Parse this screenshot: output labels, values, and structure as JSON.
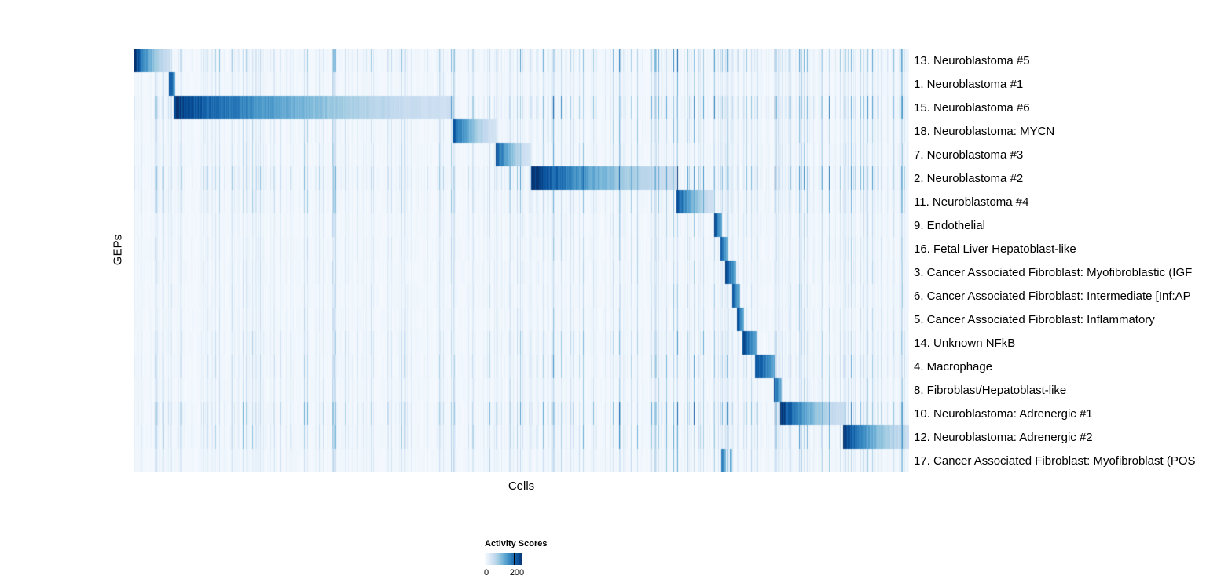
{
  "figure": {
    "background": "#ffffff",
    "text_color": "#000000"
  },
  "chart_data": {
    "type": "heatmap",
    "title": "",
    "xlabel": "Cells",
    "ylabel": "GEPs",
    "value_range": [
      0,
      200
    ],
    "colorbar": {
      "title": "Activity Scores",
      "min_label": "0",
      "max_label": "200",
      "colormap": "Blues",
      "low_color": "#f7fbff",
      "high_color": "#08306b"
    },
    "boundaries": [
      0.047,
      0.411,
      0.467,
      0.512,
      0.7,
      0.748,
      0.757,
      0.763,
      0.772,
      0.779,
      0.786,
      0.803,
      0.827,
      0.833,
      0.915
    ],
    "rows": [
      {
        "label": "13. Neuroblastoma #5",
        "noise": 1.2,
        "segments": [
          {
            "start": 0.0,
            "end": 0.047,
            "peak": 1.0
          }
        ]
      },
      {
        "label": "1. Neuroblastoma #1",
        "noise": 0.7,
        "segments": [
          {
            "start": 0.045,
            "end": 0.053,
            "peak": 1.0
          }
        ]
      },
      {
        "label": "15. Neuroblastoma #6",
        "noise": 1.3,
        "segments": [
          {
            "start": 0.051,
            "end": 0.411,
            "peak": 0.95
          }
        ]
      },
      {
        "label": "18. Neuroblastoma: MYCN",
        "noise": 0.8,
        "segments": [
          {
            "start": 0.411,
            "end": 0.467,
            "peak": 0.85
          }
        ]
      },
      {
        "label": "7. Neuroblastoma #3",
        "noise": 0.8,
        "segments": [
          {
            "start": 0.467,
            "end": 0.511,
            "peak": 0.85
          }
        ]
      },
      {
        "label": "2. Neuroblastoma #2",
        "noise": 1.4,
        "segments": [
          {
            "start": 0.512,
            "end": 0.7,
            "peak": 1.0
          }
        ]
      },
      {
        "label": "11. Neuroblastoma #4",
        "noise": 0.9,
        "segments": [
          {
            "start": 0.7,
            "end": 0.748,
            "peak": 0.9
          }
        ]
      },
      {
        "label": "9. Endothelial",
        "noise": 0.6,
        "segments": [
          {
            "start": 0.748,
            "end": 0.758,
            "peak": 0.9
          }
        ]
      },
      {
        "label": "16. Fetal Liver Hepatoblast-like",
        "noise": 0.6,
        "segments": [
          {
            "start": 0.756,
            "end": 0.766,
            "peak": 0.85
          }
        ]
      },
      {
        "label": "3. Cancer Associated Fibroblast: Myofibroblastic (IGF",
        "noise": 0.6,
        "segments": [
          {
            "start": 0.762,
            "end": 0.777,
            "peak": 0.9
          }
        ]
      },
      {
        "label": "6. Cancer Associated Fibroblast: Intermediate [Inf:AP",
        "noise": 0.6,
        "segments": [
          {
            "start": 0.772,
            "end": 0.782,
            "peak": 0.85
          }
        ]
      },
      {
        "label": "5. Cancer Associated Fibroblast: Inflammatory",
        "noise": 0.6,
        "segments": [
          {
            "start": 0.778,
            "end": 0.787,
            "peak": 0.85
          }
        ]
      },
      {
        "label": "14. Unknown NFkB",
        "noise": 0.8,
        "segments": [
          {
            "start": 0.785,
            "end": 0.803,
            "peak": 0.9
          }
        ]
      },
      {
        "label": "4. Macrophage",
        "noise": 0.9,
        "segments": [
          {
            "start": 0.801,
            "end": 0.827,
            "peak": 0.9
          }
        ]
      },
      {
        "label": "8. Fibroblast/Hepatoblast-like",
        "noise": 0.7,
        "segments": [
          {
            "start": 0.825,
            "end": 0.835,
            "peak": 0.85
          }
        ]
      },
      {
        "label": "10. Neuroblastoma: Adrenergic #1",
        "noise": 1.3,
        "segments": [
          {
            "start": 0.833,
            "end": 0.915,
            "peak": 1.0
          }
        ]
      },
      {
        "label": "12. Neuroblastoma: Adrenergic #2",
        "noise": 1.1,
        "segments": [
          {
            "start": 0.914,
            "end": 1.0,
            "peak": 1.0
          }
        ]
      },
      {
        "label": "17. Cancer Associated Fibroblast: Myofibroblast (POS",
        "noise": 0.7,
        "segments": [
          {
            "start": 0.757,
            "end": 0.763,
            "peak": 0.8
          },
          {
            "start": 0.768,
            "end": 0.772,
            "peak": 0.6
          }
        ]
      }
    ]
  }
}
